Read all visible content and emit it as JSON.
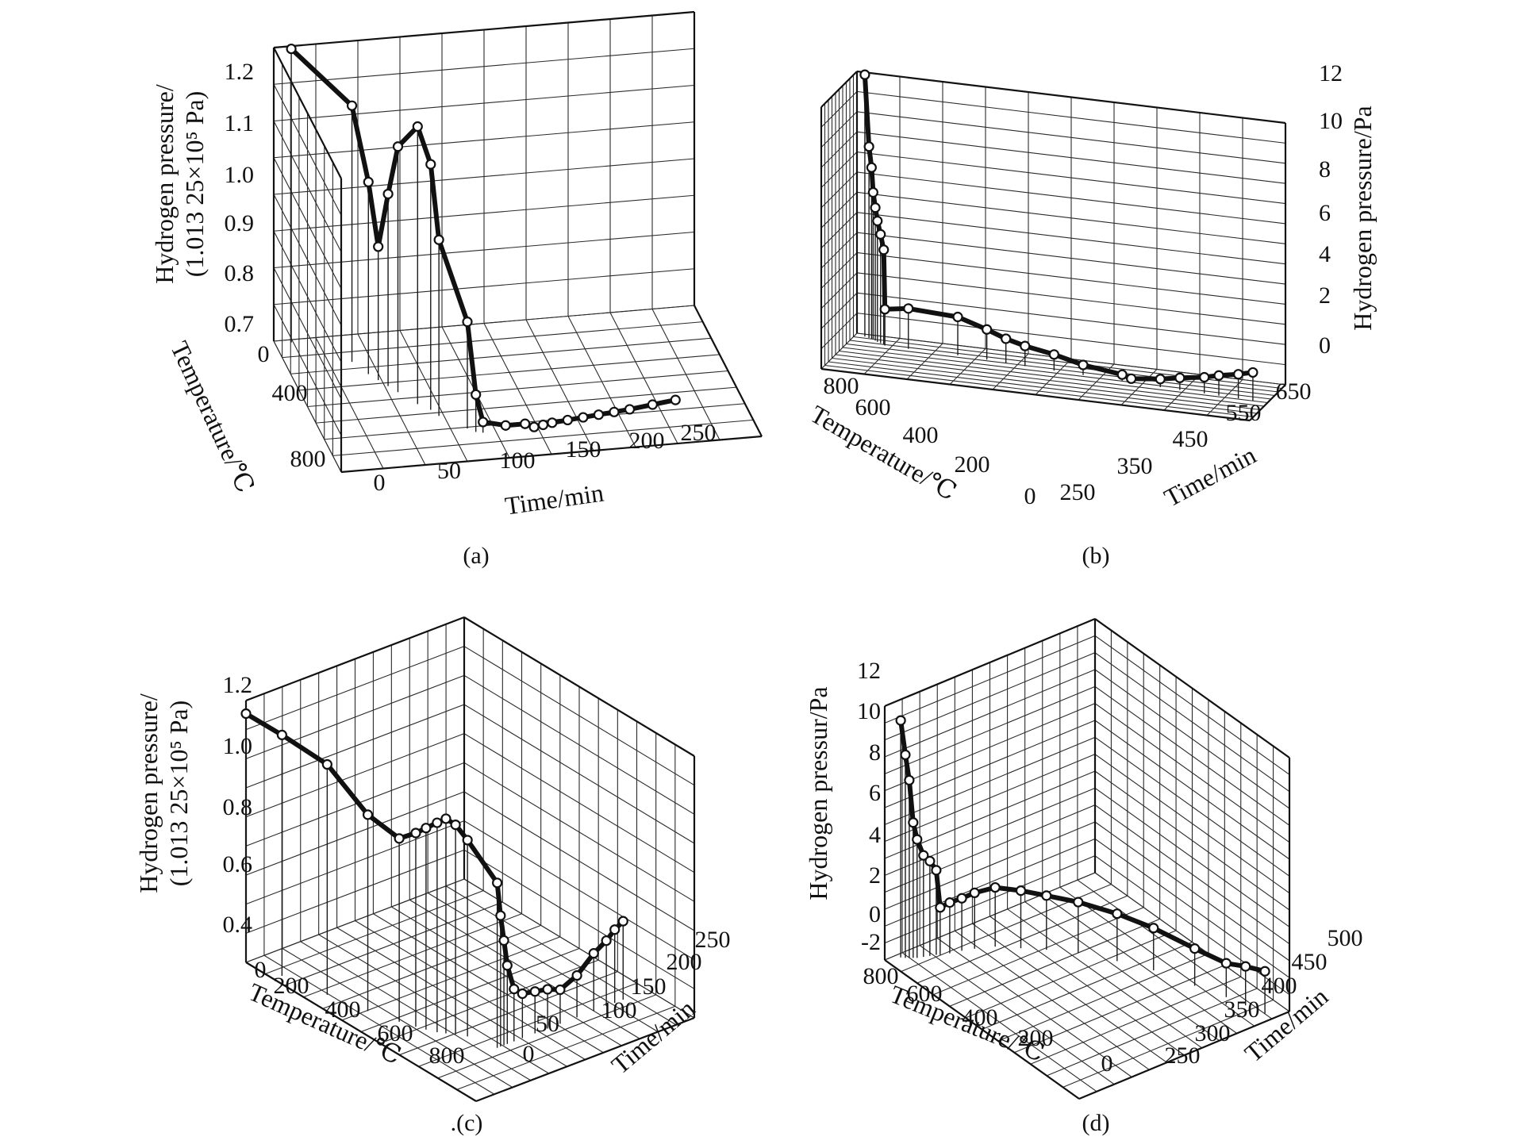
{
  "chart_data": [
    {
      "type": "3d-line",
      "caption": "(a)",
      "zlabel_line1": "Hydrogen pressure/",
      "zlabel_line2": "(1.013 25×10⁵ Pa)",
      "xlabel": "Time/min",
      "ylabel": "Temperature/℃",
      "x_ticks": [
        "0",
        "50",
        "100",
        "150",
        "200",
        "250"
      ],
      "y_ticks": [
        "0",
        "400",
        "800"
      ],
      "z_ticks": [
        "0.7",
        "0.8",
        "0.9",
        "1.0",
        "1.1",
        "1.2"
      ],
      "xlim": [
        -10,
        250
      ],
      "ylim": [
        0,
        1000
      ],
      "zlim": [
        0.7,
        1.25
      ],
      "grid": true,
      "points": [
        {
          "t": 0,
          "T": 20,
          "p": 1.25
        },
        {
          "t": 30,
          "T": 200,
          "p": 1.18
        },
        {
          "t": 36,
          "T": 300,
          "p": 1.06
        },
        {
          "t": 40,
          "T": 350,
          "p": 0.95
        },
        {
          "t": 44,
          "T": 400,
          "p": 1.06
        },
        {
          "t": 48,
          "T": 450,
          "p": 1.16
        },
        {
          "t": 56,
          "T": 550,
          "p": 1.22
        },
        {
          "t": 62,
          "T": 600,
          "p": 1.16
        },
        {
          "t": 65,
          "T": 650,
          "p": 1.03
        },
        {
          "t": 78,
          "T": 760,
          "p": 0.9
        },
        {
          "t": 82,
          "T": 790,
          "p": 0.77
        },
        {
          "t": 86,
          "T": 800,
          "p": 0.72
        },
        {
          "t": 100,
          "T": 800,
          "p": 0.71
        },
        {
          "t": 112,
          "T": 800,
          "p": 0.71
        },
        {
          "t": 118,
          "T": 790,
          "p": 0.7
        },
        {
          "t": 124,
          "T": 780,
          "p": 0.7
        },
        {
          "t": 130,
          "T": 770,
          "p": 0.7
        },
        {
          "t": 140,
          "T": 760,
          "p": 0.7
        },
        {
          "t": 150,
          "T": 750,
          "p": 0.7
        },
        {
          "t": 160,
          "T": 740,
          "p": 0.7
        },
        {
          "t": 170,
          "T": 730,
          "p": 0.7
        },
        {
          "t": 180,
          "T": 720,
          "p": 0.7
        },
        {
          "t": 195,
          "T": 700,
          "p": 0.7
        },
        {
          "t": 210,
          "T": 680,
          "p": 0.7
        }
      ]
    },
    {
      "type": "3d-line",
      "caption": "(b)",
      "zlabel": "Hydrogen pressure/Pa",
      "xlabel": "Time/min",
      "ylabel": "Temperature/℃",
      "x_ticks": [
        "250",
        "350",
        "450",
        "550",
        "650"
      ],
      "y_ticks": [
        "0",
        "200",
        "400",
        "600",
        "800"
      ],
      "z_ticks": [
        "0",
        "2",
        "4",
        "6",
        "8",
        "10",
        "12"
      ],
      "xlim": [
        220,
        650
      ],
      "ylim": [
        0,
        850
      ],
      "zlim": [
        -1,
        12
      ],
      "grid": true,
      "points": [
        {
          "t": 230,
          "T": 800,
          "p": 12
        },
        {
          "t": 235,
          "T": 780,
          "p": 8.5
        },
        {
          "t": 238,
          "T": 770,
          "p": 7.5
        },
        {
          "t": 240,
          "T": 760,
          "p": 6.3
        },
        {
          "t": 243,
          "T": 740,
          "p": 5.6
        },
        {
          "t": 246,
          "T": 720,
          "p": 5.0
        },
        {
          "t": 250,
          "T": 700,
          "p": 4.4
        },
        {
          "t": 254,
          "T": 680,
          "p": 3.7
        },
        {
          "t": 256,
          "T": 660,
          "p": 0.8
        },
        {
          "t": 280,
          "T": 650,
          "p": 1.0
        },
        {
          "t": 330,
          "T": 640,
          "p": 0.9
        },
        {
          "t": 360,
          "T": 620,
          "p": 0.5
        },
        {
          "t": 380,
          "T": 600,
          "p": 0.2
        },
        {
          "t": 400,
          "T": 580,
          "p": 0.0
        },
        {
          "t": 430,
          "T": 560,
          "p": -0.2
        },
        {
          "t": 460,
          "T": 540,
          "p": -0.5
        },
        {
          "t": 500,
          "T": 520,
          "p": -0.7
        },
        {
          "t": 510,
          "T": 500,
          "p": -0.8
        },
        {
          "t": 540,
          "T": 480,
          "p": -0.6
        },
        {
          "t": 560,
          "T": 470,
          "p": -0.4
        },
        {
          "t": 585,
          "T": 460,
          "p": -0.2
        },
        {
          "t": 600,
          "T": 450,
          "p": 0.0
        },
        {
          "t": 620,
          "T": 440,
          "p": 0.2
        },
        {
          "t": 635,
          "T": 430,
          "p": 0.4
        }
      ]
    },
    {
      "type": "3d-line",
      "caption": ".(c)",
      "zlabel_line1": "Hydrogen pressure/",
      "zlabel_line2": "(1.013 25×10⁵ Pa)",
      "xlabel": "Temperature/℃",
      "ylabel": "Time/min",
      "x_ticks": [
        "0",
        "200",
        "400",
        "600",
        "800"
      ],
      "y_ticks": [
        "0",
        "50",
        "100",
        "150",
        "200",
        "250"
      ],
      "z_ticks": [
        "0.4",
        "0.6",
        "0.8",
        "1.0",
        "1.2"
      ],
      "xlim": [
        0,
        1000
      ],
      "ylim": [
        0,
        260
      ],
      "zlim": [
        0.3,
        1.3
      ],
      "grid": true,
      "points": [
        {
          "T": 0,
          "t": 0,
          "p": 1.25
        },
        {
          "T": 120,
          "t": 10,
          "p": 1.22
        },
        {
          "T": 280,
          "t": 20,
          "p": 1.18
        },
        {
          "T": 420,
          "t": 30,
          "p": 1.05
        },
        {
          "T": 520,
          "t": 40,
          "p": 1.0
        },
        {
          "T": 570,
          "t": 46,
          "p": 1.04
        },
        {
          "T": 600,
          "t": 50,
          "p": 1.07
        },
        {
          "T": 630,
          "t": 55,
          "p": 1.1
        },
        {
          "T": 650,
          "t": 60,
          "p": 1.12
        },
        {
          "T": 670,
          "t": 66,
          "p": 1.1
        },
        {
          "T": 700,
          "t": 72,
          "p": 1.05
        },
        {
          "T": 800,
          "t": 80,
          "p": 0.93
        },
        {
          "T": 800,
          "t": 84,
          "p": 0.8
        },
        {
          "T": 800,
          "t": 88,
          "p": 0.7
        },
        {
          "T": 800,
          "t": 92,
          "p": 0.6
        },
        {
          "T": 800,
          "t": 100,
          "p": 0.5
        },
        {
          "T": 800,
          "t": 110,
          "p": 0.47
        },
        {
          "T": 800,
          "t": 125,
          "p": 0.46
        },
        {
          "T": 800,
          "t": 140,
          "p": 0.45
        },
        {
          "T": 800,
          "t": 155,
          "p": 0.43
        },
        {
          "T": 800,
          "t": 175,
          "p": 0.46
        },
        {
          "T": 800,
          "t": 195,
          "p": 0.52
        },
        {
          "T": 800,
          "t": 210,
          "p": 0.55
        },
        {
          "T": 800,
          "t": 220,
          "p": 0.58
        },
        {
          "T": 800,
          "t": 230,
          "p": 0.6
        }
      ]
    },
    {
      "type": "3d-line",
      "caption": "(d)",
      "zlabel": "Hydrogen pressur/Pa",
      "xlabel": "Temperature/℃",
      "ylabel": "Time/min",
      "x_ticks": [
        "800",
        "600",
        "400",
        "200",
        "0"
      ],
      "y_ticks": [
        "250",
        "300",
        "350",
        "400",
        "450",
        "500"
      ],
      "z_ticks": [
        "-2",
        "0",
        "2",
        "4",
        "6",
        "8",
        "10",
        "12"
      ],
      "xlim": [
        850,
        0
      ],
      "ylim": [
        230,
        500
      ],
      "zlim": [
        -2,
        13
      ],
      "grid": true,
      "points": [
        {
          "T": 800,
          "t": 235,
          "p": 12
        },
        {
          "T": 790,
          "t": 238,
          "p": 10
        },
        {
          "T": 780,
          "t": 240,
          "p": 8.5
        },
        {
          "T": 770,
          "t": 242,
          "p": 6.0
        },
        {
          "T": 760,
          "t": 244,
          "p": 5.0
        },
        {
          "T": 740,
          "t": 246,
          "p": 4.0
        },
        {
          "T": 720,
          "t": 248,
          "p": 3.6
        },
        {
          "T": 700,
          "t": 250,
          "p": 3.0
        },
        {
          "T": 690,
          "t": 252,
          "p": 0.8
        },
        {
          "T": 660,
          "t": 255,
          "p": 1.0
        },
        {
          "T": 620,
          "t": 258,
          "p": 1.1
        },
        {
          "T": 580,
          "t": 262,
          "p": 1.3
        },
        {
          "T": 520,
          "t": 270,
          "p": 1.5
        },
        {
          "T": 460,
          "t": 285,
          "p": 1.4
        },
        {
          "T": 400,
          "t": 300,
          "p": 1.2
        },
        {
          "T": 330,
          "t": 320,
          "p": 1.0
        },
        {
          "T": 260,
          "t": 350,
          "p": 0.8
        },
        {
          "T": 200,
          "t": 380,
          "p": 0.5
        },
        {
          "T": 150,
          "t": 420,
          "p": 0.2
        },
        {
          "T": 110,
          "t": 450,
          "p": 0.0
        },
        {
          "T": 90,
          "t": 470,
          "p": 0.3
        },
        {
          "T": 70,
          "t": 490,
          "p": 0.5
        }
      ]
    }
  ]
}
